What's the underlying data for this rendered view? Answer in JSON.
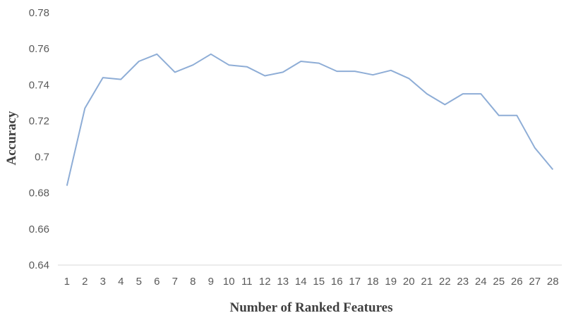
{
  "chart_data": {
    "type": "line",
    "title": "",
    "xlabel": "Number of Ranked Features",
    "ylabel": "Accuracy",
    "x": [
      1,
      2,
      3,
      4,
      5,
      6,
      7,
      8,
      9,
      10,
      11,
      12,
      13,
      14,
      15,
      16,
      17,
      18,
      19,
      20,
      21,
      22,
      23,
      24,
      25,
      26,
      27,
      28
    ],
    "series": [
      {
        "values": [
          0.684,
          0.727,
          0.744,
          0.743,
          0.753,
          0.757,
          0.747,
          0.751,
          0.757,
          0.751,
          0.75,
          0.745,
          0.747,
          0.753,
          0.752,
          0.7475,
          0.7475,
          0.7455,
          0.748,
          0.7435,
          0.735,
          0.729,
          0.735,
          0.735,
          0.723,
          0.723,
          0.705,
          0.693
        ],
        "color": "#8EADD6"
      }
    ],
    "ylim": [
      0.64,
      0.78
    ],
    "yticks": [
      "0.64",
      "0.66",
      "0.68",
      "0.7",
      "0.72",
      "0.74",
      "0.76",
      "0.78"
    ],
    "xticks": [
      "1",
      "2",
      "3",
      "4",
      "5",
      "6",
      "7",
      "8",
      "9",
      "10",
      "11",
      "12",
      "13",
      "14",
      "15",
      "16",
      "17",
      "18",
      "19",
      "20",
      "21",
      "22",
      "23",
      "24",
      "25",
      "26",
      "27",
      "28"
    ],
    "grid": false,
    "legend": "none"
  }
}
